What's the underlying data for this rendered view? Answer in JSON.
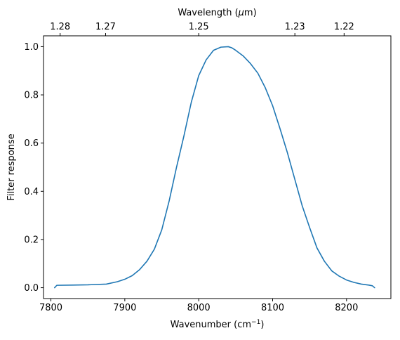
{
  "chart_data": {
    "type": "line",
    "xlabel": "Wavenumber (cm",
    "xlabel_sup": "−1",
    "xlabel_suffix": ")",
    "ylabel": "Filter response",
    "top_xlabel": "Wavelength (",
    "top_xlabel_mu": "μ",
    "top_xlabel_suffix": "m)",
    "xlim": [
      7790,
      8260
    ],
    "ylim": [
      -0.045,
      1.045
    ],
    "x_ticks": [
      7800,
      7900,
      8000,
      8100,
      8200
    ],
    "y_ticks": [
      0.0,
      0.2,
      0.4,
      0.6,
      0.8,
      1.0
    ],
    "top_ticks": [
      {
        "label": "1.28",
        "value": 7812.5
      },
      {
        "label": "1.27",
        "value": 7874.0
      },
      {
        "label": "1.25",
        "value": 8000.0
      },
      {
        "label": "1.23",
        "value": 8130.1
      },
      {
        "label": "1.22",
        "value": 8196.7
      }
    ],
    "grid": false,
    "series": [
      {
        "color": "#1f77b4",
        "x": [
          7805,
          7808,
          7830,
          7850,
          7875,
          7890,
          7900,
          7910,
          7920,
          7930,
          7940,
          7950,
          7960,
          7970,
          7980,
          7990,
          8000,
          8010,
          8020,
          8030,
          8040,
          8045,
          8050,
          8060,
          8070,
          8080,
          8090,
          8100,
          8110,
          8120,
          8130,
          8140,
          8150,
          8160,
          8170,
          8180,
          8190,
          8200,
          8210,
          8220,
          8230,
          8235,
          8238
        ],
        "y": [
          0.0,
          0.01,
          0.011,
          0.012,
          0.015,
          0.025,
          0.035,
          0.05,
          0.075,
          0.11,
          0.16,
          0.24,
          0.36,
          0.5,
          0.63,
          0.77,
          0.88,
          0.945,
          0.985,
          0.998,
          1.0,
          0.995,
          0.985,
          0.962,
          0.93,
          0.89,
          0.83,
          0.755,
          0.66,
          0.56,
          0.45,
          0.34,
          0.25,
          0.165,
          0.11,
          0.07,
          0.048,
          0.032,
          0.022,
          0.015,
          0.011,
          0.008,
          0.0
        ]
      }
    ]
  }
}
